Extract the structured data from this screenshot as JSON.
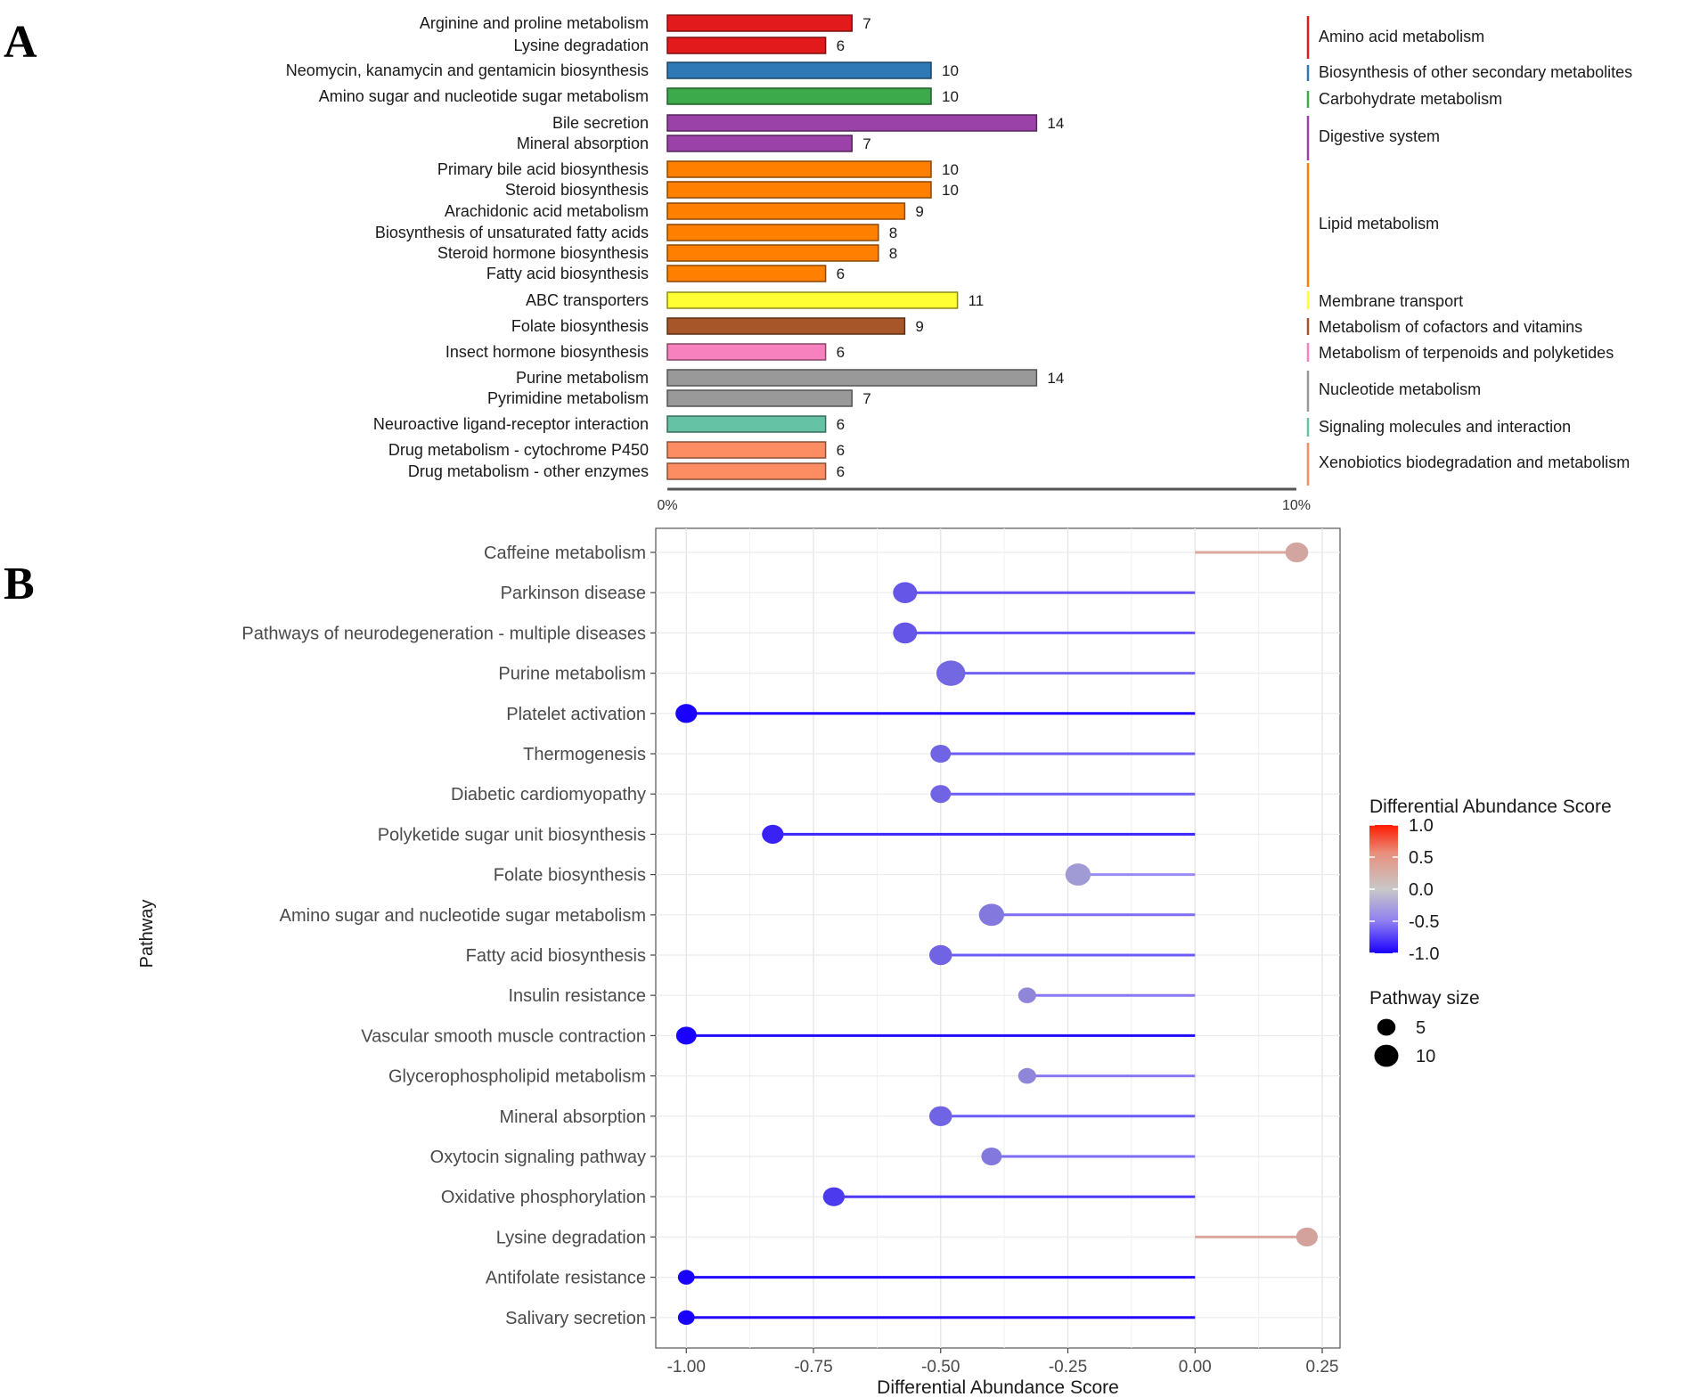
{
  "chart_data": [
    {
      "panel_label": "A",
      "type": "bar",
      "orientation": "horizontal",
      "xlabel": "",
      "ylabel": "",
      "xlim_label": [
        "0%",
        "10%"
      ],
      "xlim": [
        0,
        10
      ],
      "categories": [
        "Arginine and proline metabolism",
        "Lysine degradation",
        "Neomycin, kanamycin and gentamicin biosynthesis",
        "Amino sugar and nucleotide sugar metabolism",
        "Bile secretion",
        "Mineral absorption",
        "Primary bile acid biosynthesis",
        "Steroid biosynthesis",
        "Arachidonic acid metabolism",
        "Biosynthesis of unsaturated fatty acids",
        "Steroid hormone biosynthesis",
        "Fatty acid biosynthesis",
        "ABC transporters",
        "Folate biosynthesis",
        "Insect hormone biosynthesis",
        "Purine metabolism",
        "Pyrimidine metabolism",
        "Neuroactive ligand-receptor interaction",
        "Drug metabolism - cytochrome P450",
        "Drug metabolism - other enzymes"
      ],
      "values": [
        7,
        6,
        10,
        10,
        14,
        7,
        10,
        10,
        9,
        8,
        8,
        6,
        11,
        9,
        6,
        14,
        7,
        6,
        6,
        6
      ],
      "value_labels": [
        "7",
        "6",
        "10",
        "10",
        "14",
        "7",
        "10",
        "10",
        "9",
        "8",
        "8",
        "6",
        "11",
        "9",
        "6",
        "14",
        "7",
        "6",
        "6",
        "6"
      ],
      "group_index": [
        0,
        0,
        1,
        2,
        3,
        3,
        4,
        4,
        4,
        4,
        4,
        4,
        5,
        6,
        7,
        8,
        8,
        9,
        10,
        10
      ],
      "groups": [
        {
          "name": "Amino acid metabolism",
          "color": "#e31a1c"
        },
        {
          "name": "Biosynthesis of other secondary metabolites",
          "color": "#2e79b6"
        },
        {
          "name": "Carbohydrate metabolism",
          "color": "#3caa4a"
        },
        {
          "name": "Digestive system",
          "color": "#9b42a8"
        },
        {
          "name": "Lipid metabolism",
          "color": "#ff7f00"
        },
        {
          "name": "Membrane transport",
          "color": "#ffff33"
        },
        {
          "name": "Metabolism of cofactors and vitamins",
          "color": "#a65628"
        },
        {
          "name": "Metabolism of terpenoids and polyketides",
          "color": "#f781bf"
        },
        {
          "name": "Nucleotide metabolism",
          "color": "#999999"
        },
        {
          "name": "Signaling molecules and interaction",
          "color": "#66c2a5"
        },
        {
          "name": "Xenobiotics biodegradation and metabolism",
          "color": "#fc8d62"
        }
      ]
    },
    {
      "panel_label": "B",
      "type": "scatter",
      "subtype": "lollipop",
      "xlabel": "Differential Abundance Score",
      "ylabel": "Pathway",
      "xlim": [
        -1.06,
        0.285
      ],
      "xticks": [
        -1.0,
        -0.75,
        -0.5,
        -0.25,
        0.0,
        0.25
      ],
      "xtick_labels": [
        "-1.00",
        "-0.75",
        "-0.50",
        "-0.25",
        "0.00",
        "0.25"
      ],
      "grid": true,
      "pathways": [
        "Caffeine metabolism",
        "Parkinson disease",
        "Pathways of neurodegeneration - multiple diseases",
        "Purine metabolism",
        "Platelet activation",
        "Thermogenesis",
        "Diabetic cardiomyopathy",
        "Polyketide sugar unit biosynthesis",
        "Folate biosynthesis",
        "Amino sugar and nucleotide sugar metabolism",
        "Fatty acid biosynthesis",
        "Insulin resistance",
        "Vascular smooth muscle contraction",
        "Glycerophospholipid metabolism",
        "Mineral absorption",
        "Oxytocin signaling pathway",
        "Oxidative phosphorylation",
        "Lysine degradation",
        "Antifolate resistance",
        "Salivary secretion"
      ],
      "scores": [
        0.2,
        -0.57,
        -0.57,
        -0.48,
        -1.0,
        -0.5,
        -0.5,
        -0.83,
        -0.23,
        -0.4,
        -0.5,
        -0.33,
        -1.0,
        -0.33,
        -0.5,
        -0.4,
        -0.71,
        0.22,
        -1.0,
        -1.0
      ],
      "sizes": [
        8,
        9,
        9,
        13,
        7,
        6,
        6,
        7,
        10,
        10,
        8,
        4,
        6,
        4,
        8,
        6,
        7,
        7,
        3,
        3
      ],
      "color_legend": {
        "title": "Differential Abundance Score",
        "tick_labels": [
          "1.0",
          "0.5",
          "0.0",
          "-0.5",
          "-1.0"
        ],
        "tick_values": [
          1.0,
          0.5,
          0.0,
          -0.5,
          -1.0
        ],
        "colors": {
          "low": "#1a00ff",
          "mid": "#c8c8c8",
          "high": "#ff1a00"
        }
      },
      "size_legend": {
        "title": "Pathway size",
        "labels": [
          "5",
          "10"
        ],
        "values": [
          5,
          10
        ]
      }
    }
  ]
}
